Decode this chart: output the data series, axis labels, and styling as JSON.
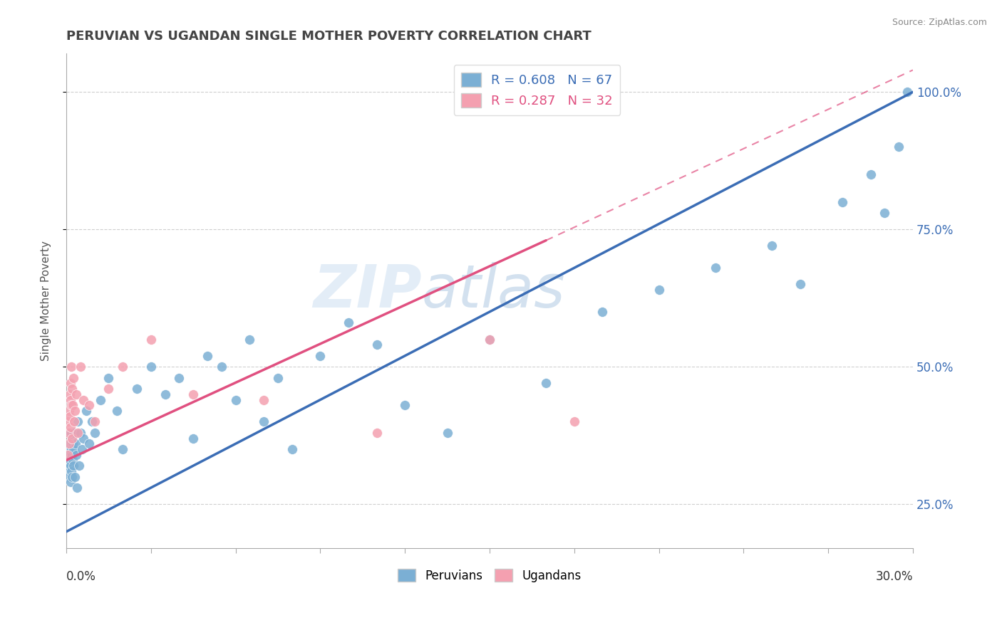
{
  "title": "PERUVIAN VS UGANDAN SINGLE MOTHER POVERTY CORRELATION CHART",
  "source": "Source: ZipAtlas.com",
  "ylabel": "Single Mother Poverty",
  "xlim": [
    0.0,
    30.0
  ],
  "ylim": [
    17.0,
    107.0
  ],
  "peruvian_R": 0.608,
  "peruvian_N": 67,
  "ugandan_R": 0.287,
  "ugandan_N": 32,
  "blue_scatter_color": "#7BAFD4",
  "pink_scatter_color": "#F4A0B0",
  "blue_line_color": "#3B6DB5",
  "pink_line_color": "#E05080",
  "blue_reg_x0": 0.0,
  "blue_reg_y0": 20.0,
  "blue_reg_x1": 30.0,
  "blue_reg_y1": 100.0,
  "pink_reg_x0": 0.0,
  "pink_reg_y0": 33.0,
  "pink_reg_x1": 17.0,
  "pink_reg_y1": 73.0,
  "pink_dash_x0": 17.0,
  "pink_dash_y0": 73.0,
  "pink_dash_x1": 30.0,
  "pink_dash_y1": 104.0,
  "right_ytick_labels": [
    "25.0%",
    "50.0%",
    "75.0%",
    "100.0%"
  ],
  "right_ytick_values": [
    25.0,
    50.0,
    75.0,
    100.0
  ],
  "peruvian_x": [
    0.05,
    0.07,
    0.08,
    0.09,
    0.1,
    0.11,
    0.12,
    0.13,
    0.14,
    0.15,
    0.16,
    0.17,
    0.18,
    0.19,
    0.2,
    0.21,
    0.22,
    0.23,
    0.24,
    0.25,
    0.27,
    0.3,
    0.32,
    0.35,
    0.38,
    0.4,
    0.45,
    0.5,
    0.55,
    0.6,
    0.7,
    0.8,
    0.9,
    1.0,
    1.2,
    1.5,
    1.8,
    2.0,
    2.5,
    3.0,
    3.5,
    4.0,
    4.5,
    5.0,
    5.5,
    6.0,
    6.5,
    7.0,
    7.5,
    8.0,
    9.0,
    10.0,
    11.0,
    12.0,
    13.5,
    15.0,
    17.0,
    19.0,
    21.0,
    23.0,
    25.0,
    26.0,
    27.5,
    28.5,
    29.0,
    29.5,
    29.8
  ],
  "peruvian_y": [
    33,
    32,
    31,
    35,
    34,
    30,
    36,
    33,
    29,
    38,
    32,
    35,
    31,
    37,
    34,
    30,
    33,
    36,
    32,
    35,
    38,
    30,
    36,
    34,
    28,
    40,
    32,
    38,
    35,
    37,
    42,
    36,
    40,
    38,
    44,
    48,
    42,
    35,
    46,
    50,
    45,
    48,
    37,
    52,
    50,
    44,
    55,
    40,
    48,
    35,
    52,
    58,
    54,
    43,
    38,
    55,
    47,
    60,
    64,
    68,
    72,
    65,
    80,
    85,
    78,
    90,
    100
  ],
  "ugandan_x": [
    0.04,
    0.06,
    0.08,
    0.1,
    0.11,
    0.12,
    0.13,
    0.14,
    0.15,
    0.16,
    0.17,
    0.18,
    0.19,
    0.2,
    0.22,
    0.25,
    0.28,
    0.3,
    0.35,
    0.4,
    0.5,
    0.6,
    0.8,
    1.0,
    1.5,
    2.0,
    3.0,
    4.5,
    7.0,
    11.0,
    15.0,
    18.0
  ],
  "ugandan_y": [
    34,
    40,
    38,
    36,
    42,
    45,
    41,
    44,
    39,
    47,
    43,
    50,
    37,
    46,
    43,
    48,
    40,
    42,
    45,
    38,
    50,
    44,
    43,
    40,
    46,
    50,
    55,
    45,
    44,
    38,
    55,
    40
  ],
  "watermark_text": "ZIPatlas",
  "watermark_color": "#C8DCF0",
  "watermark_alpha": 0.5
}
